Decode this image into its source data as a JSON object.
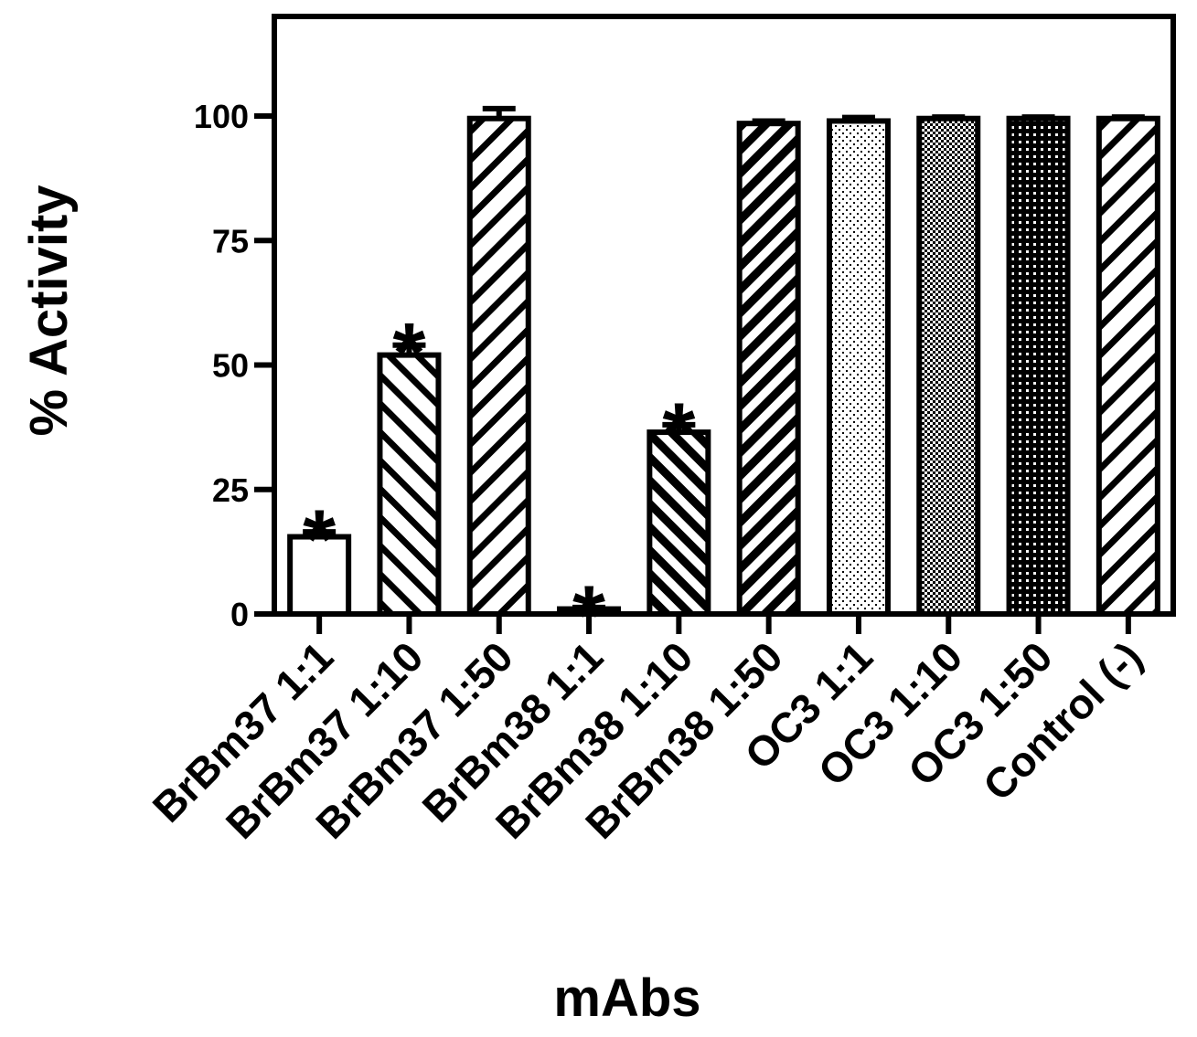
{
  "chart_data": {
    "type": "bar",
    "title": "",
    "xlabel": "mAbs",
    "ylabel": "% Activity",
    "ylim": [
      0,
      120
    ],
    "yticks": [
      "0",
      "25",
      "50",
      "75",
      "100"
    ],
    "categories": [
      "BrBm37 1:1",
      "BrBm37 1:10",
      "BrBm37 1:50",
      "BrBm38 1:1",
      "BrBm38 1:10",
      "BrBm38 1:50",
      "OC3 1:1",
      "OC3 1:10",
      "OC3 1:50",
      "Control (-)"
    ],
    "values": [
      15.5,
      52,
      99.5,
      1,
      36.5,
      98.5,
      99,
      99.5,
      99.5,
      99.5
    ],
    "errors": [
      1,
      2,
      2,
      0.3,
      1.5,
      0.5,
      0.7,
      0.3,
      0.3,
      0.3
    ],
    "fills": [
      "white",
      "hatch-left",
      "hatch-right",
      "white",
      "hatch-left-dense",
      "hatch-right-dense",
      "dots-light",
      "dots-medium",
      "dots-dark",
      "hatch-right"
    ],
    "significance_marker": "*",
    "significant": [
      true,
      true,
      false,
      true,
      true,
      false,
      false,
      false,
      false,
      false
    ],
    "grid": false,
    "legend": "none"
  }
}
